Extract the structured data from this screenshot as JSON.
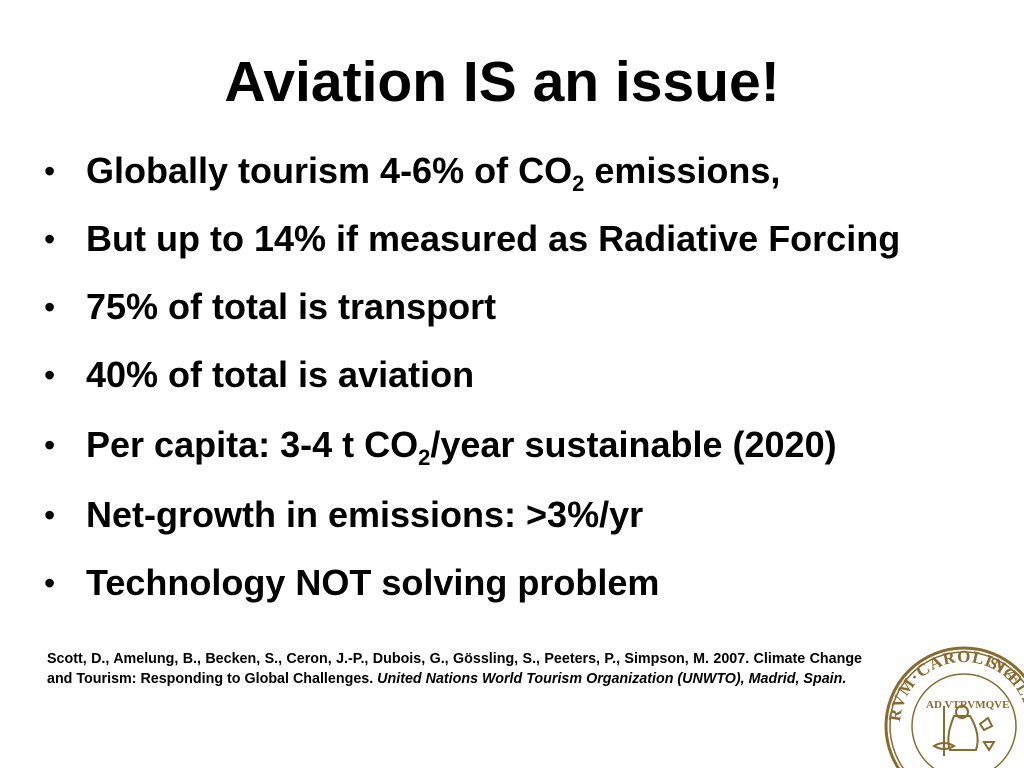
{
  "slide": {
    "title": "Aviation IS an issue!",
    "bullets": [
      {
        "before": "Globally tourism 4-6% of CO",
        "sub": "2",
        "after": " emissions,"
      },
      {
        "before": "But up to 14% if measured as Radiative Forcing",
        "sub": "",
        "after": ""
      },
      {
        "before": "75% of total is transport",
        "sub": "",
        "after": ""
      },
      {
        "before": "40% of total is aviation",
        "sub": "",
        "after": ""
      },
      {
        "before": "Per capita: 3-4 t CO",
        "sub": "2",
        "after": "/year sustainable (2020)"
      },
      {
        "before": "Net-growth in emissions: >3%/yr",
        "sub": "",
        "after": ""
      },
      {
        "before": "Technology NOT solving problem",
        "sub": "",
        "after": ""
      }
    ],
    "bullet_symbol": "•",
    "citation": {
      "plain": "Scott, D., Amelung, B., Becken, S., Ceron, J.-P., Dubois, G., Gössling, S., Peeters, P., Simpson, M. 2007. Climate Change and Tourism: Responding to Global Challenges. ",
      "italic": "United Nations World Tourism Organization (UNWTO), Madrid, Spain."
    },
    "seal": {
      "text_left": "RVM·CAROLINÆ",
      "text_right": "SIGILLVM",
      "motto": "AD VTRVMQVE",
      "color": "#8a6a2e"
    }
  }
}
